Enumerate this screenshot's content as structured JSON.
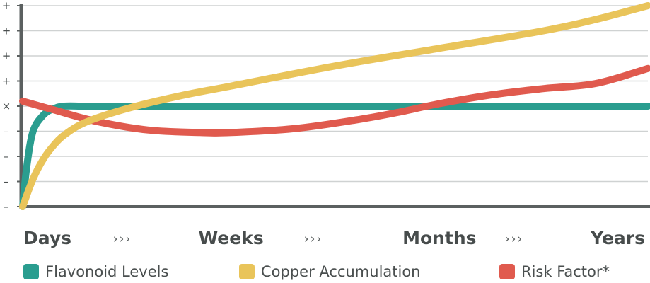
{
  "chart_data": {
    "type": "line",
    "title": "",
    "xlabel": "",
    "ylabel": "",
    "categories": [
      "Days",
      "Weeks",
      "Months",
      "Years"
    ],
    "category_separator": "›››",
    "xlim": [
      0,
      3
    ],
    "ylim": [
      -4,
      4
    ],
    "y_ticks": [
      {
        "value": 4,
        "label": "+"
      },
      {
        "value": 3,
        "label": "+"
      },
      {
        "value": 2,
        "label": "+"
      },
      {
        "value": 1,
        "label": "+"
      },
      {
        "value": 0,
        "label": "×"
      },
      {
        "value": -1,
        "label": "–"
      },
      {
        "value": -2,
        "label": "–"
      },
      {
        "value": -3,
        "label": "–"
      },
      {
        "value": -4,
        "label": "–"
      }
    ],
    "grid": true,
    "legend_position": "bottom",
    "series": [
      {
        "name": "Flavonoid Levels",
        "color": "#2a9d8f",
        "x": [
          0,
          0.02,
          0.05,
          0.1,
          0.15,
          0.2,
          0.3,
          0.5,
          1.0,
          1.5,
          2.0,
          2.5,
          3.0
        ],
        "y": [
          -4,
          -2.4,
          -1.0,
          -0.35,
          -0.1,
          0,
          0,
          0,
          0,
          0,
          0,
          0,
          0
        ]
      },
      {
        "name": "Copper Accumulation",
        "color": "#e9c45a",
        "x": [
          0,
          0.05,
          0.1,
          0.15,
          0.2,
          0.3,
          0.5,
          0.75,
          1.0,
          1.5,
          2.0,
          2.5,
          2.75,
          3.0
        ],
        "y": [
          -4,
          -2.9,
          -2.1,
          -1.55,
          -1.15,
          -0.65,
          -0.1,
          0.4,
          0.8,
          1.6,
          2.3,
          3.0,
          3.45,
          4.0
        ]
      },
      {
        "name": "Risk Factor*",
        "color": "#e05a4e",
        "x": [
          0,
          0.15,
          0.35,
          0.6,
          0.85,
          1.0,
          1.3,
          1.6,
          1.8,
          2.0,
          2.25,
          2.5,
          2.75,
          3.0
        ],
        "y": [
          0.2,
          -0.15,
          -0.6,
          -0.95,
          -1.05,
          -1.05,
          -0.9,
          -0.55,
          -0.25,
          0.1,
          0.45,
          0.7,
          0.9,
          1.5
        ]
      }
    ]
  }
}
